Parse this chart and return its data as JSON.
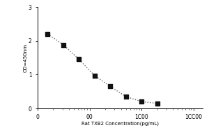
{
  "x_values": [
    15.625,
    31.25,
    62.5,
    125,
    250,
    500,
    1000,
    2000
  ],
  "y_values": [
    2.2,
    1.88,
    1.45,
    0.97,
    0.65,
    0.35,
    0.2,
    0.15
  ],
  "x_label": "Rat TXB2 Concentration(pg/mL)",
  "y_label": "OD=450nm",
  "x_min": 10,
  "x_max": 15000,
  "y_min": 0,
  "y_max": 3,
  "y_ticks": [
    0,
    1,
    2,
    3
  ],
  "x_tick_labels": {
    "10": "0",
    "100": "00",
    "1000": "1C00",
    "10000": "1CC00"
  },
  "marker_color": "#111111",
  "line_color": "#666666",
  "background_color": "#ffffff",
  "marker_size": 4,
  "line_style": ":",
  "line_width": 1.0,
  "ylabel_fontsize": 5,
  "xlabel_fontsize": 5,
  "tick_labelsize": 5.5
}
